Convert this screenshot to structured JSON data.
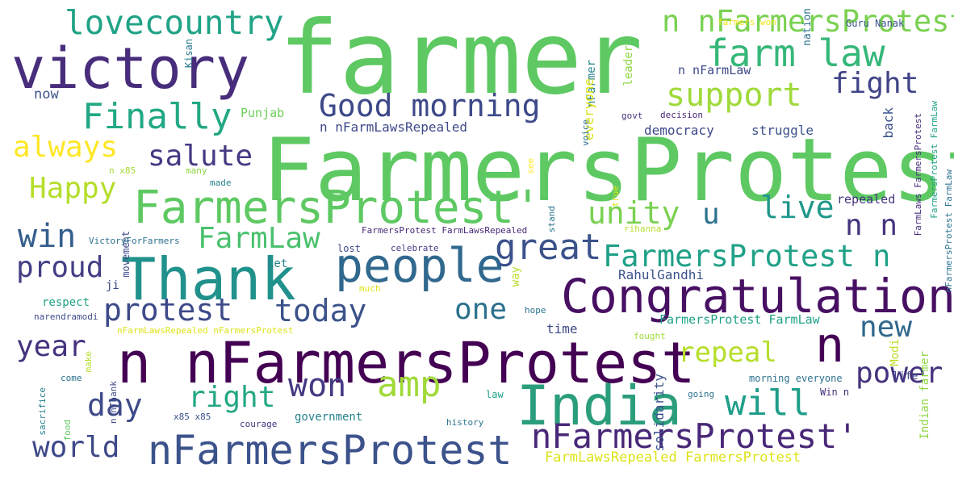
{
  "words": [
    {
      "text": "farmer",
      "color": "#5ec962"
    },
    {
      "text": "FarmersProtest",
      "color": "#5ec962"
    },
    {
      "text": "victory",
      "color": "#472d7b"
    },
    {
      "text": "n nFarmersProtest",
      "color": "#440154"
    },
    {
      "text": "Thank",
      "color": "#21918c"
    },
    {
      "text": "India",
      "color": "#2a9d7c"
    },
    {
      "text": "Congratulation",
      "color": "#471063"
    },
    {
      "text": "people",
      "color": "#31688e"
    },
    {
      "text": "FarmersProtest'",
      "color": "#5ec962"
    },
    {
      "text": "nFarmersProtest",
      "color": "#3b528b"
    },
    {
      "text": "nFarmersProtest'",
      "color": "#482878"
    },
    {
      "text": "n nFarmersProtest'",
      "color": "#7ad151"
    },
    {
      "text": "lovecountry",
      "color": "#20a386"
    },
    {
      "text": "farm law",
      "color": "#35b779"
    },
    {
      "text": "Good morning",
      "color": "#3e4989"
    },
    {
      "text": "Finally",
      "color": "#22a884"
    },
    {
      "text": "support",
      "color": "#9fda3a"
    },
    {
      "text": "fight",
      "color": "#414487"
    },
    {
      "text": "always",
      "color": "#fde725"
    },
    {
      "text": "salute",
      "color": "#443983"
    },
    {
      "text": "Happy",
      "color": "#b5de2b"
    },
    {
      "text": "win",
      "color": "#355f8d"
    },
    {
      "text": "FarmLaw",
      "color": "#4ac16d"
    },
    {
      "text": "unity",
      "color": "#7ad151"
    },
    {
      "text": "u",
      "color": "#2c728e"
    },
    {
      "text": "live",
      "color": "#1f988b"
    },
    {
      "text": "n n",
      "color": "#46337e"
    },
    {
      "text": "great",
      "color": "#3b528b"
    },
    {
      "text": "FarmersProtest n",
      "color": "#1fa187"
    },
    {
      "text": "proud",
      "color": "#433e85"
    },
    {
      "text": "protest",
      "color": "#3e4a89"
    },
    {
      "text": "today",
      "color": "#3b528b"
    },
    {
      "text": "one",
      "color": "#2c728e"
    },
    {
      "text": "year",
      "color": "#46327e"
    },
    {
      "text": "new",
      "color": "#31688e"
    },
    {
      "text": "n",
      "color": "#440154"
    },
    {
      "text": "repeal",
      "color": "#b5de2b"
    },
    {
      "text": "amp",
      "color": "#a0da39"
    },
    {
      "text": "won",
      "color": "#443a83"
    },
    {
      "text": "will",
      "color": "#1f9e89"
    },
    {
      "text": "power",
      "color": "#46327e"
    },
    {
      "text": "day",
      "color": "#3e4a89"
    },
    {
      "text": "right",
      "color": "#22a884"
    },
    {
      "text": "world",
      "color": "#3e4989"
    },
    {
      "text": "Kisan",
      "color": "#2a788e"
    },
    {
      "text": "farmers won",
      "color": "#f1e51d"
    },
    {
      "text": "Guru Nanak",
      "color": "#3b528b"
    },
    {
      "text": "nation",
      "color": "#2c728e"
    },
    {
      "text": "leader",
      "color": "#8fd744"
    },
    {
      "text": "nFarmer",
      "color": "#26828e"
    },
    {
      "text": "n nFarmLaw",
      "color": "#3e4989"
    },
    {
      "text": "everyone",
      "color": "#dde318"
    },
    {
      "text": "now",
      "color": "#3b528b"
    },
    {
      "text": "Punjab",
      "color": "#6ece58"
    },
    {
      "text": "n nFarmLawsRepealed",
      "color": "#3e4a89"
    },
    {
      "text": "voice",
      "color": "#2c728e"
    },
    {
      "text": "govt",
      "color": "#46327e"
    },
    {
      "text": "decision",
      "color": "#482878"
    },
    {
      "text": "back",
      "color": "#3b528b"
    },
    {
      "text": "democracy",
      "color": "#3e4989"
    },
    {
      "text": "struggle",
      "color": "#3b528b"
    },
    {
      "text": "FarmersProtest FarmLaw",
      "color": "#1fa187"
    },
    {
      "text": "FarmLaws FarmersProtest",
      "color": "#472d7b"
    },
    {
      "text": "nFarmersProtest FarmLaw",
      "color": "#2c728e"
    },
    {
      "text": "n x85",
      "color": "#a5db36"
    },
    {
      "text": "many",
      "color": "#8fd744"
    },
    {
      "text": "made",
      "color": "#26828e"
    },
    {
      "text": "see",
      "color": "#fde725"
    },
    {
      "text": "true",
      "color": "#dde318"
    },
    {
      "text": "stand",
      "color": "#2c728e"
    },
    {
      "text": "repealed",
      "color": "#46327e"
    },
    {
      "text": "rihanna",
      "color": "#b5de2b"
    },
    {
      "text": "movement",
      "color": "#3e4989"
    },
    {
      "text": "VictoryForFarmers",
      "color": "#2c728e"
    },
    {
      "text": "FarmersProtest FarmLawsRepealed",
      "color": "#482878"
    },
    {
      "text": "lost",
      "color": "#3e4989"
    },
    {
      "text": "celebrate",
      "color": "#433e85"
    },
    {
      "text": "Let",
      "color": "#26828e"
    },
    {
      "text": "RahulGandhi",
      "color": "#3b528b"
    },
    {
      "text": "ji",
      "color": "#3e4989"
    },
    {
      "text": "much",
      "color": "#dde318"
    },
    {
      "text": "way",
      "color": "#b5de2b"
    },
    {
      "text": "respect",
      "color": "#20a386"
    },
    {
      "text": "hope",
      "color": "#2c728e"
    },
    {
      "text": "narendramodi",
      "color": "#3e4989"
    },
    {
      "text": "FarmersProtest FarmLaw",
      "color": "#1fa187"
    },
    {
      "text": "nFarmLawsRepealed nFarmersProtest",
      "color": "#dde318"
    },
    {
      "text": "time",
      "color": "#3e4989"
    },
    {
      "text": "fought",
      "color": "#a0da39"
    },
    {
      "text": "Modi",
      "color": "#bddf26"
    },
    {
      "text": "make",
      "color": "#b5de2b"
    },
    {
      "text": "solidarity",
      "color": "#3b528b"
    },
    {
      "text": "morning everyone",
      "color": "#2c728e"
    },
    {
      "text": "life",
      "color": "#3e4989"
    },
    {
      "text": "Indian farmer",
      "color": "#8fd744"
    },
    {
      "text": "come",
      "color": "#2c728e"
    },
    {
      "text": "n nThank",
      "color": "#3e4989"
    },
    {
      "text": "law",
      "color": "#1fa187"
    },
    {
      "text": "going",
      "color": "#2c728e"
    },
    {
      "text": "Win n",
      "color": "#472d7b"
    },
    {
      "text": "sacrifice",
      "color": "#26828e"
    },
    {
      "text": "food",
      "color": "#5ec962"
    },
    {
      "text": "x85 x85",
      "color": "#3b528b"
    },
    {
      "text": "courage",
      "color": "#46327e"
    },
    {
      "text": "government",
      "color": "#26828e"
    },
    {
      "text": "history",
      "color": "#2c728e"
    },
    {
      "text": "FarmLawsRepealed FarmersProtest",
      "color": "#dde318"
    }
  ]
}
